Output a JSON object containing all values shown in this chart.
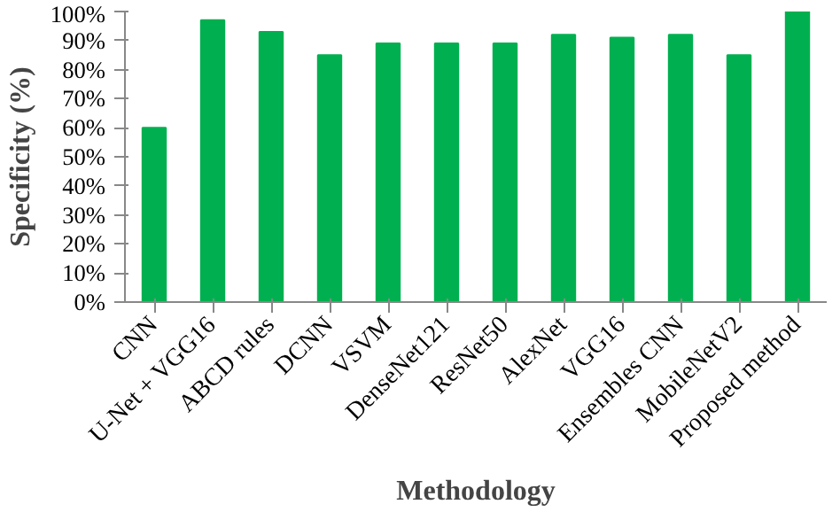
{
  "chart_data": {
    "type": "bar",
    "xlabel": "Methodology",
    "ylabel": "Specificity (%)",
    "categories": [
      "CNN",
      "U-Net + VGG16",
      "ABCD rules",
      "DCNN",
      "VSVM",
      "DenseNet121",
      "ResNet50",
      "AlexNet",
      "VGG16",
      "Ensembles CNN",
      "MobileNetV2",
      "Proposed method"
    ],
    "values": [
      60,
      97,
      93,
      85,
      89,
      89,
      89,
      92,
      91,
      92,
      85,
      100
    ],
    "color": "#00b050",
    "ylim": [
      0,
      100
    ],
    "yticks": [
      {
        "value": 0,
        "label": "0%"
      },
      {
        "value": 10,
        "label": "10%"
      },
      {
        "value": 20,
        "label": "20%"
      },
      {
        "value": 30,
        "label": "30%"
      },
      {
        "value": 40,
        "label": "40%"
      },
      {
        "value": 50,
        "label": "50%"
      },
      {
        "value": 60,
        "label": "60%"
      },
      {
        "value": 70,
        "label": "70%"
      },
      {
        "value": 80,
        "label": "80%"
      },
      {
        "value": 90,
        "label": "90%"
      },
      {
        "value": 100,
        "label": "100%"
      }
    ],
    "grid": false
  }
}
